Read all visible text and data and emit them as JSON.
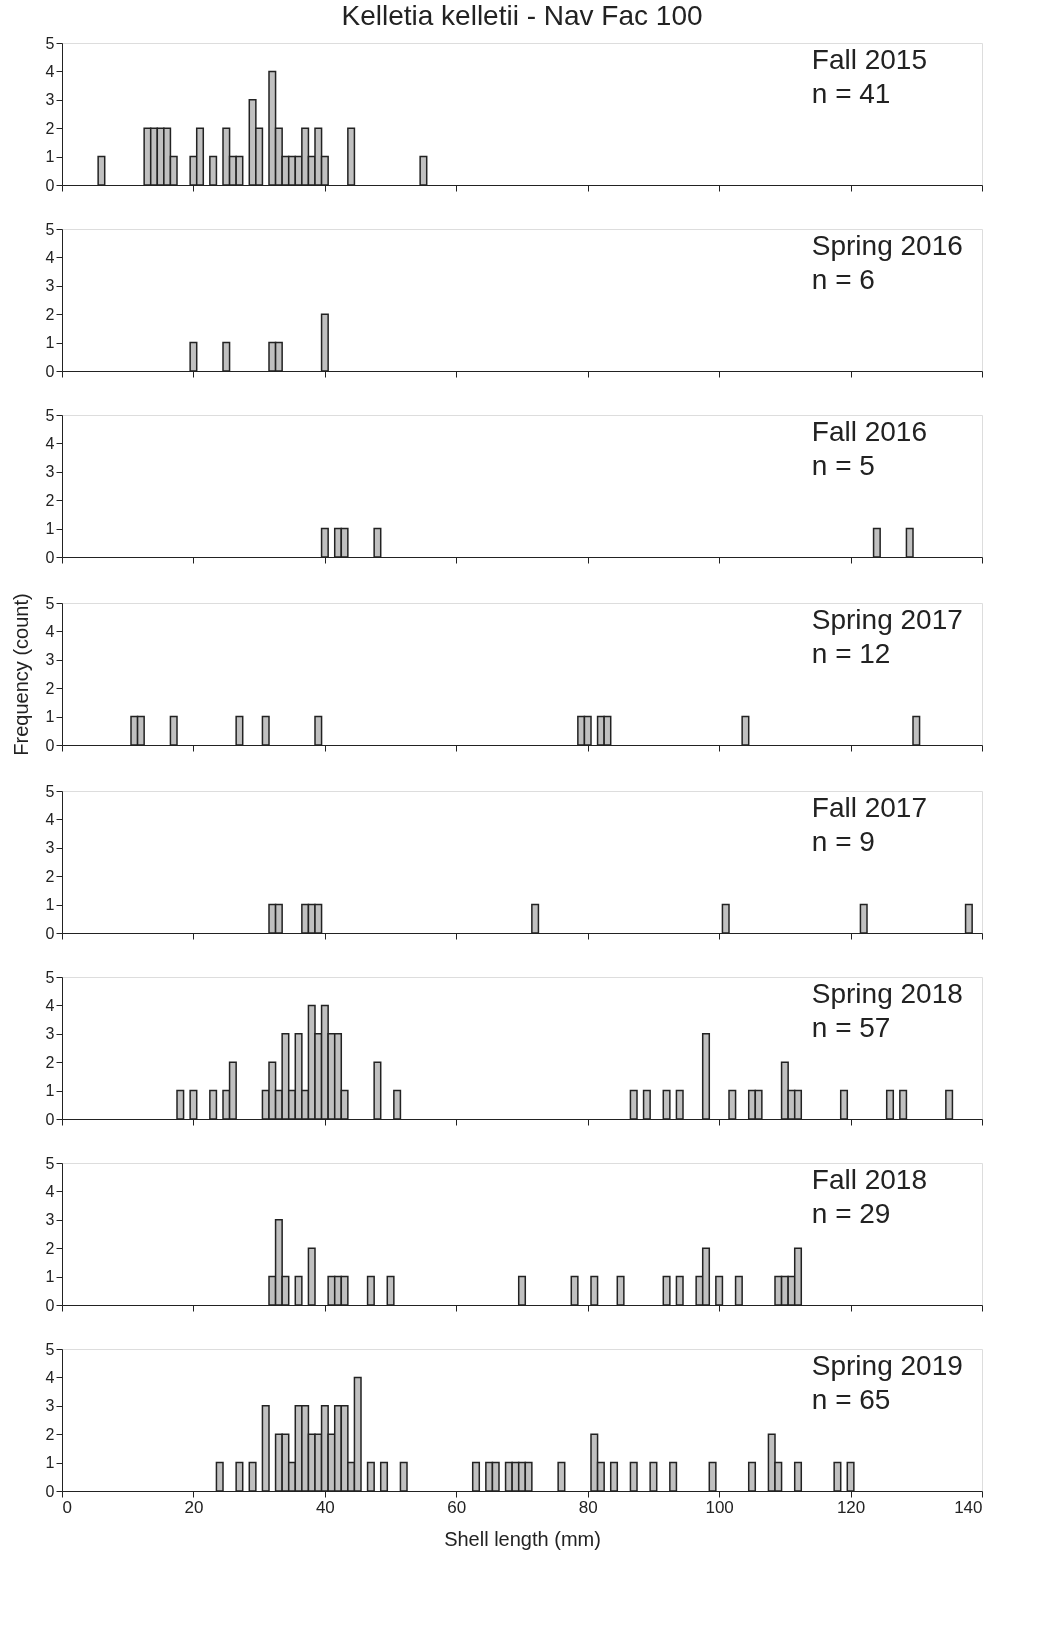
{
  "chart_data": [
    {
      "type": "histogram",
      "title": "Kelletia kelletii - Nav Fac 100",
      "annotations": [
        "Fall 2015",
        "n = 41"
      ],
      "color": "#c0c0c0",
      "xlim": [
        0,
        140
      ],
      "xticks": [
        0,
        20,
        40,
        60,
        80,
        100,
        120,
        140
      ],
      "ylim": [
        0,
        5
      ],
      "yticks": [
        0,
        1,
        2,
        3,
        4,
        5
      ],
      "tick_labels": "y",
      "bins": [
        5.5,
        6.5,
        12.5,
        13.5,
        14.5,
        15.5,
        16.5,
        17.5,
        19.5,
        20.5,
        21.5,
        22.5,
        23.5,
        24.5,
        25.5,
        26.5,
        27.5,
        28.5,
        29.5,
        30.5,
        31.5,
        32.5,
        33.5,
        34.5,
        35.5,
        36.5,
        37.5,
        38.5,
        39.5,
        40.5,
        43.5,
        44.5,
        54.5,
        55.5
      ],
      "values": [
        1,
        0,
        2,
        2,
        2,
        2,
        1,
        0,
        1,
        2,
        0,
        1,
        0,
        2,
        1,
        1,
        0,
        3,
        2,
        0,
        4,
        2,
        1,
        1,
        1,
        2,
        1,
        2,
        1,
        0,
        2,
        0,
        1
      ]
    },
    {
      "type": "histogram",
      "annotations": [
        "Spring 2016",
        "n = 6"
      ],
      "color": "#c0c0c0",
      "xlim": [
        0,
        140
      ],
      "xticks": [
        0,
        20,
        40,
        60,
        80,
        100,
        120,
        140
      ],
      "ylim": [
        0,
        5
      ],
      "yticks": [
        0,
        1,
        2,
        3,
        4,
        5
      ],
      "tick_labels": "y",
      "bins": [
        19.5,
        20.5,
        24.5,
        25.5,
        31.5,
        32.5,
        33.5,
        39.5,
        40.5
      ],
      "values": [
        1,
        0,
        1,
        0,
        1,
        1,
        0,
        2
      ]
    },
    {
      "type": "histogram",
      "annotations": [
        "Fall 2016",
        "n = 5"
      ],
      "color": "#c0c0c0",
      "xlim": [
        0,
        140
      ],
      "xticks": [
        0,
        20,
        40,
        60,
        80,
        100,
        120,
        140
      ],
      "ylim": [
        0,
        5
      ],
      "yticks": [
        0,
        1,
        2,
        3,
        4,
        5
      ],
      "tick_labels": "y",
      "bins": [
        39.5,
        40.5,
        41.5,
        42.5,
        43.5,
        47.5,
        48.5,
        123.5,
        124.5,
        128.5,
        129.5
      ],
      "values": [
        1,
        0,
        1,
        1,
        0,
        1,
        0,
        1,
        0,
        1
      ]
    },
    {
      "type": "histogram",
      "annotations": [
        "Spring 2017",
        "n = 12"
      ],
      "ylabel": "Frequency (count)",
      "color": "#c0c0c0",
      "xlim": [
        0,
        140
      ],
      "xticks": [
        0,
        20,
        40,
        60,
        80,
        100,
        120,
        140
      ],
      "ylim": [
        0,
        5
      ],
      "yticks": [
        0,
        1,
        2,
        3,
        4,
        5
      ],
      "tick_labels": "y",
      "bins": [
        10.5,
        11.5,
        12.5,
        16.5,
        17.5,
        26.5,
        27.5,
        30.5,
        31.5,
        38.5,
        39.5,
        78.5,
        79.5,
        80.5,
        81.5,
        82.5,
        83.5,
        103.5,
        104.5,
        129.5,
        130.5
      ],
      "values": [
        1,
        1,
        0,
        1,
        0,
        1,
        0,
        1,
        0,
        1,
        0,
        1,
        1,
        0,
        1,
        1,
        0,
        1,
        0,
        1
      ]
    },
    {
      "type": "histogram",
      "annotations": [
        "Fall 2017",
        "n = 9"
      ],
      "color": "#c0c0c0",
      "xlim": [
        0,
        140
      ],
      "xticks": [
        0,
        20,
        40,
        60,
        80,
        100,
        120,
        140
      ],
      "ylim": [
        0,
        5
      ],
      "yticks": [
        0,
        1,
        2,
        3,
        4,
        5
      ],
      "tick_labels": "y",
      "bins": [
        31.5,
        32.5,
        33.5,
        36.5,
        37.5,
        38.5,
        39.5,
        71.5,
        72.5,
        100.5,
        101.5,
        121.5,
        122.5,
        137.5,
        138.5
      ],
      "values": [
        1,
        1,
        0,
        1,
        1,
        1,
        0,
        1,
        0,
        1,
        0,
        1,
        0,
        1
      ]
    },
    {
      "type": "histogram",
      "annotations": [
        "Spring 2018",
        "n = 57"
      ],
      "color": "#c0c0c0",
      "xlim": [
        0,
        140
      ],
      "xticks": [
        0,
        20,
        40,
        60,
        80,
        100,
        120,
        140
      ],
      "ylim": [
        0,
        5
      ],
      "yticks": [
        0,
        1,
        2,
        3,
        4,
        5
      ],
      "tick_labels": "y",
      "bins": [
        17.5,
        18.5,
        19.5,
        20.5,
        22.5,
        23.5,
        24.5,
        25.5,
        26.5,
        30.5,
        31.5,
        32.5,
        33.5,
        34.5,
        35.5,
        36.5,
        37.5,
        38.5,
        39.5,
        40.5,
        41.5,
        42.5,
        43.5,
        47.5,
        48.5,
        50.5,
        51.5,
        86.5,
        87.5,
        88.5,
        89.5,
        91.5,
        92.5,
        93.5,
        94.5,
        97.5,
        98.5,
        101.5,
        102.5,
        104.5,
        105.5,
        106.5,
        109.5,
        110.5,
        111.5,
        112.5,
        118.5,
        119.5,
        125.5,
        126.5,
        127.5,
        128.5,
        134.5,
        135.5
      ],
      "values": [
        1,
        0,
        1,
        0,
        1,
        0,
        1,
        2,
        0,
        1,
        2,
        1,
        3,
        1,
        3,
        1,
        4,
        3,
        4,
        3,
        3,
        1,
        0,
        2,
        0,
        1,
        0,
        1,
        0,
        1,
        0,
        1,
        0,
        1,
        0,
        3,
        0,
        1,
        0,
        1,
        1,
        0,
        2,
        1,
        1,
        0,
        1,
        0,
        1,
        0,
        1,
        0,
        1
      ]
    },
    {
      "type": "histogram",
      "annotations": [
        "Fall 2018",
        "n = 29"
      ],
      "color": "#c0c0c0",
      "xlim": [
        0,
        140
      ],
      "xticks": [
        0,
        20,
        40,
        60,
        80,
        100,
        120,
        140
      ],
      "ylim": [
        0,
        5
      ],
      "yticks": [
        0,
        1,
        2,
        3,
        4,
        5
      ],
      "tick_labels": "y",
      "bins": [
        31.5,
        32.5,
        33.5,
        34.5,
        35.5,
        36.5,
        37.5,
        38.5,
        40.5,
        41.5,
        42.5,
        43.5,
        46.5,
        47.5,
        49.5,
        50.5,
        69.5,
        70.5,
        77.5,
        78.5,
        80.5,
        81.5,
        84.5,
        85.5,
        91.5,
        92.5,
        93.5,
        94.5,
        96.5,
        97.5,
        98.5,
        99.5,
        100.5,
        102.5,
        103.5,
        108.5,
        109.5,
        110.5,
        111.5,
        112.5
      ],
      "values": [
        1,
        3,
        1,
        0,
        1,
        0,
        2,
        0,
        1,
        1,
        1,
        0,
        1,
        0,
        1,
        0,
        1,
        0,
        1,
        0,
        1,
        0,
        1,
        0,
        1,
        0,
        1,
        0,
        1,
        2,
        0,
        1,
        0,
        1,
        0,
        1,
        1,
        1,
        2
      ]
    },
    {
      "type": "histogram",
      "annotations": [
        "Spring 2019",
        "n = 65"
      ],
      "xlabel": "Shell length (mm)",
      "color": "#c0c0c0",
      "xlim": [
        0,
        140
      ],
      "xticks": [
        0,
        20,
        40,
        60,
        80,
        100,
        120,
        140
      ],
      "ylim": [
        0,
        5
      ],
      "yticks": [
        0,
        1,
        2,
        3,
        4,
        5
      ],
      "bins": [
        23.5,
        24.5,
        26.5,
        27.5,
        28.5,
        29.5,
        30.5,
        31.5,
        32.5,
        33.5,
        34.5,
        35.5,
        36.5,
        37.5,
        38.5,
        39.5,
        40.5,
        41.5,
        42.5,
        43.5,
        44.5,
        45.5,
        46.5,
        47.5,
        48.5,
        49.5,
        51.5,
        52.5,
        62.5,
        63.5,
        64.5,
        65.5,
        66.5,
        67.5,
        68.5,
        69.5,
        70.5,
        71.5,
        75.5,
        76.5,
        80.5,
        81.5,
        82.5,
        83.5,
        84.5,
        86.5,
        87.5,
        89.5,
        90.5,
        92.5,
        93.5,
        98.5,
        99.5,
        104.5,
        105.5,
        107.5,
        108.5,
        109.5,
        111.5,
        112.5,
        117.5,
        118.5,
        119.5,
        120.5
      ],
      "values": [
        1,
        0,
        1,
        0,
        1,
        0,
        3,
        0,
        2,
        2,
        1,
        3,
        3,
        2,
        2,
        3,
        2,
        3,
        3,
        1,
        4,
        0,
        1,
        0,
        1,
        0,
        1,
        0,
        1,
        0,
        1,
        1,
        0,
        1,
        1,
        1,
        1,
        0,
        1,
        0,
        2,
        1,
        0,
        1,
        0,
        1,
        0,
        1,
        0,
        1,
        0,
        1,
        0,
        1,
        0,
        2,
        1,
        0,
        1,
        0,
        1,
        0,
        1
      ]
    }
  ]
}
